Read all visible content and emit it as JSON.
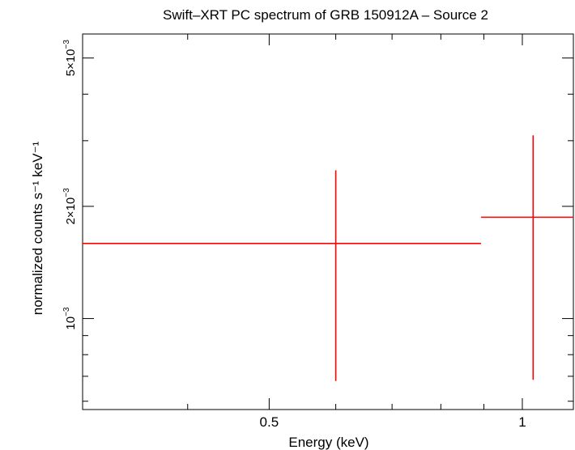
{
  "chart_data": {
    "type": "scatter",
    "title": "Swift–XRT PC spectrum of GRB 150912A – Source 2",
    "xlabel": "Energy (keV)",
    "ylabel": "normalized counts s⁻¹ keV⁻¹",
    "xscale": "log",
    "yscale": "log",
    "xlim": [
      0.3,
      1.15
    ],
    "ylim": [
      0.00057,
      0.0058
    ],
    "grid": false,
    "x_ticks": [
      {
        "value": 0.5,
        "label": "0.5"
      },
      {
        "value": 1,
        "label": "1"
      }
    ],
    "y_ticks": [
      {
        "value": 0.001,
        "mant": "",
        "exp": "−3"
      },
      {
        "value": 0.002,
        "mant": "2×10",
        "exp": "−3"
      },
      {
        "value": 0.005,
        "mant": "5×10",
        "exp": "−3"
      }
    ],
    "series": [
      {
        "color": "#ff0000",
        "points": [
          {
            "x": 0.6,
            "xlo": 0.3,
            "xhi": 0.893,
            "y": 0.00159,
            "ylo": 0.00068,
            "yhi": 0.0025
          },
          {
            "x": 1.03,
            "xlo": 0.893,
            "xhi": 1.15,
            "y": 0.00187,
            "ylo": 0.000685,
            "yhi": 0.0031
          }
        ]
      }
    ]
  }
}
